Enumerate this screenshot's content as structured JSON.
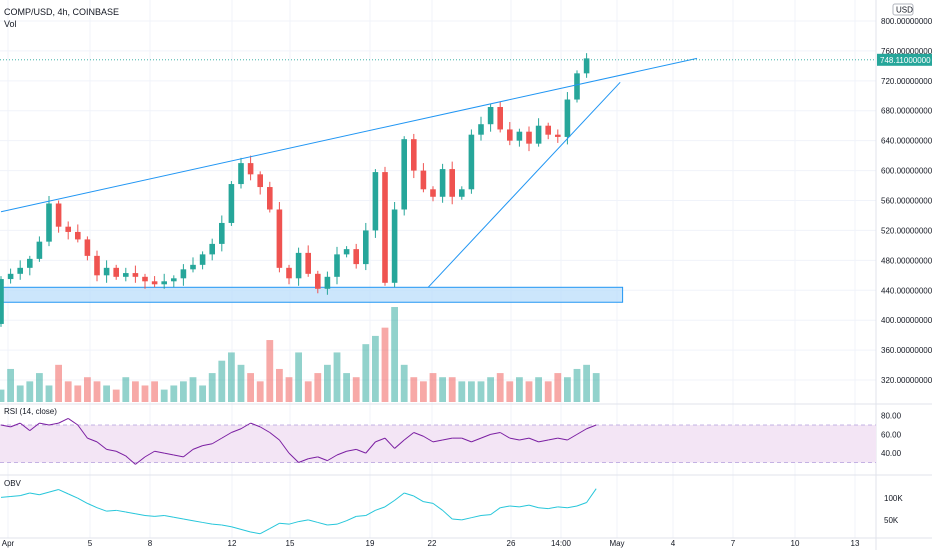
{
  "header": {
    "symbol_line": "COMP/USD, 4h, COINBASE",
    "volume_label": "Vol"
  },
  "price_axis": {
    "currency_button": "USD",
    "current_price_label": "748.11000000"
  },
  "rsi": {
    "label": "RSI (14, close)",
    "ticks": [
      "80.00",
      "60.00",
      "40.00"
    ]
  },
  "obv": {
    "label": "OBV",
    "ticks": [
      "100K",
      "50K"
    ]
  },
  "colors": {
    "bull": "#26a69a",
    "bear": "#ef5350",
    "trendline": "#2196f3",
    "support_fill": "#bbdefb",
    "rsi_line": "#7b1fa2",
    "rsi_band": "#f3e5f5",
    "obv_line": "#26c6da"
  },
  "chart_data": [
    {
      "type": "candlestick",
      "title": "COMP/USD, 4h, COINBASE",
      "x_ticks": [
        "Apr",
        "5",
        "8",
        "12",
        "15",
        "19",
        "22",
        "26",
        "14:00",
        "May",
        "4",
        "7",
        "10",
        "13"
      ],
      "y_ticks": [
        "800.00000000",
        "760.00000000",
        "720.00000000",
        "680.00000000",
        "640.00000000",
        "600.00000000",
        "560.00000000",
        "520.00000000",
        "480.00000000",
        "440.00000000",
        "400.00000000",
        "360.00000000",
        "320.00000000"
      ],
      "ylim": [
        296,
        812
      ],
      "last_price": 748.11,
      "anchors": [
        [
          0,
          395
        ],
        [
          4,
          455
        ],
        [
          8,
          462
        ],
        [
          12,
          470
        ],
        [
          16,
          482
        ],
        [
          20,
          505
        ],
        [
          24,
          556
        ],
        [
          28,
          525
        ],
        [
          32,
          518
        ],
        [
          36,
          508
        ],
        [
          40,
          486
        ],
        [
          44,
          460
        ],
        [
          48,
          470
        ],
        [
          52,
          458
        ],
        [
          56,
          463
        ],
        [
          60,
          458
        ],
        [
          64,
          452
        ],
        [
          68,
          448
        ],
        [
          72,
          452
        ],
        [
          76,
          456
        ],
        [
          80,
          468
        ],
        [
          84,
          474
        ],
        [
          88,
          488
        ],
        [
          92,
          502
        ],
        [
          96,
          530
        ],
        [
          100,
          582
        ],
        [
          104,
          610
        ],
        [
          108,
          595
        ],
        [
          112,
          578
        ],
        [
          116,
          548
        ],
        [
          120,
          470
        ],
        [
          124,
          456
        ],
        [
          128,
          490
        ],
        [
          132,
          462
        ],
        [
          136,
          442
        ],
        [
          140,
          458
        ],
        [
          144,
          488
        ],
        [
          148,
          495
        ],
        [
          152,
          475
        ],
        [
          156,
          520
        ],
        [
          160,
          598
        ],
        [
          164,
          450
        ],
        [
          168,
          548
        ],
        [
          172,
          642
        ],
        [
          176,
          600
        ],
        [
          180,
          575
        ],
        [
          184,
          565
        ],
        [
          188,
          602
        ],
        [
          192,
          565
        ],
        [
          196,
          575
        ],
        [
          200,
          648
        ],
        [
          204,
          662
        ],
        [
          208,
          685
        ],
        [
          212,
          655
        ],
        [
          216,
          640
        ],
        [
          220,
          652
        ],
        [
          224,
          636
        ],
        [
          228,
          660
        ],
        [
          232,
          648
        ],
        [
          236,
          645
        ],
        [
          240,
          695
        ],
        [
          244,
          730
        ],
        [
          248,
          750
        ]
      ],
      "trendlines": [
        {
          "name": "upper-wedge-line",
          "x1": 0,
          "y1": 545,
          "x2": 290,
          "y2": 750
        },
        {
          "name": "lower-wedge-line",
          "x1": 178,
          "y1": 444,
          "x2": 258,
          "y2": 718
        }
      ],
      "support_zone": {
        "x_start": 0,
        "x_end": 259,
        "low": 424,
        "high": 444
      }
    },
    {
      "type": "bar",
      "title": "Vol",
      "series": [
        {
          "values": [
            3,
            8,
            4,
            5,
            7,
            4,
            9,
            5,
            4,
            6,
            5,
            4,
            3,
            6,
            5,
            4,
            5,
            3,
            4,
            5,
            6,
            4,
            7,
            10,
            12,
            9,
            7,
            5,
            15,
            8,
            6,
            12,
            5,
            7,
            9,
            12,
            7,
            6,
            14,
            16,
            18,
            23,
            9,
            6,
            5,
            7,
            6,
            6,
            5,
            5,
            5,
            6,
            7,
            5,
            6,
            5,
            6,
            5,
            7,
            6,
            8,
            9,
            7
          ]
        }
      ]
    },
    {
      "type": "line",
      "title": "RSI (14, close)",
      "ylim": [
        22,
        86
      ],
      "series": [
        {
          "values": [
            70,
            68,
            72,
            64,
            72,
            70,
            72,
            77,
            70,
            56,
            52,
            44,
            42,
            37,
            28,
            36,
            42,
            40,
            38,
            36,
            44,
            48,
            50,
            56,
            62,
            66,
            72,
            68,
            62,
            54,
            40,
            30,
            34,
            36,
            32,
            38,
            42,
            44,
            40,
            52,
            56,
            45,
            54,
            62,
            58,
            52,
            54,
            56,
            56,
            52,
            56,
            60,
            62,
            56,
            54,
            56,
            52,
            54,
            56,
            54,
            60,
            66,
            70
          ]
        }
      ]
    },
    {
      "type": "line",
      "title": "OBV",
      "ylim": [
        15,
        142
      ],
      "series": [
        {
          "values": [
            102,
            104,
            106,
            112,
            108,
            114,
            120,
            110,
            100,
            88,
            78,
            70,
            72,
            68,
            64,
            60,
            58,
            60,
            56,
            52,
            48,
            44,
            40,
            38,
            34,
            28,
            22,
            18,
            30,
            42,
            40,
            46,
            50,
            44,
            38,
            40,
            48,
            58,
            60,
            72,
            80,
            95,
            112,
            105,
            92,
            88,
            72,
            52,
            50,
            55,
            60,
            62,
            78,
            82,
            80,
            84,
            78,
            76,
            80,
            78,
            82,
            90,
            122
          ]
        }
      ]
    }
  ]
}
